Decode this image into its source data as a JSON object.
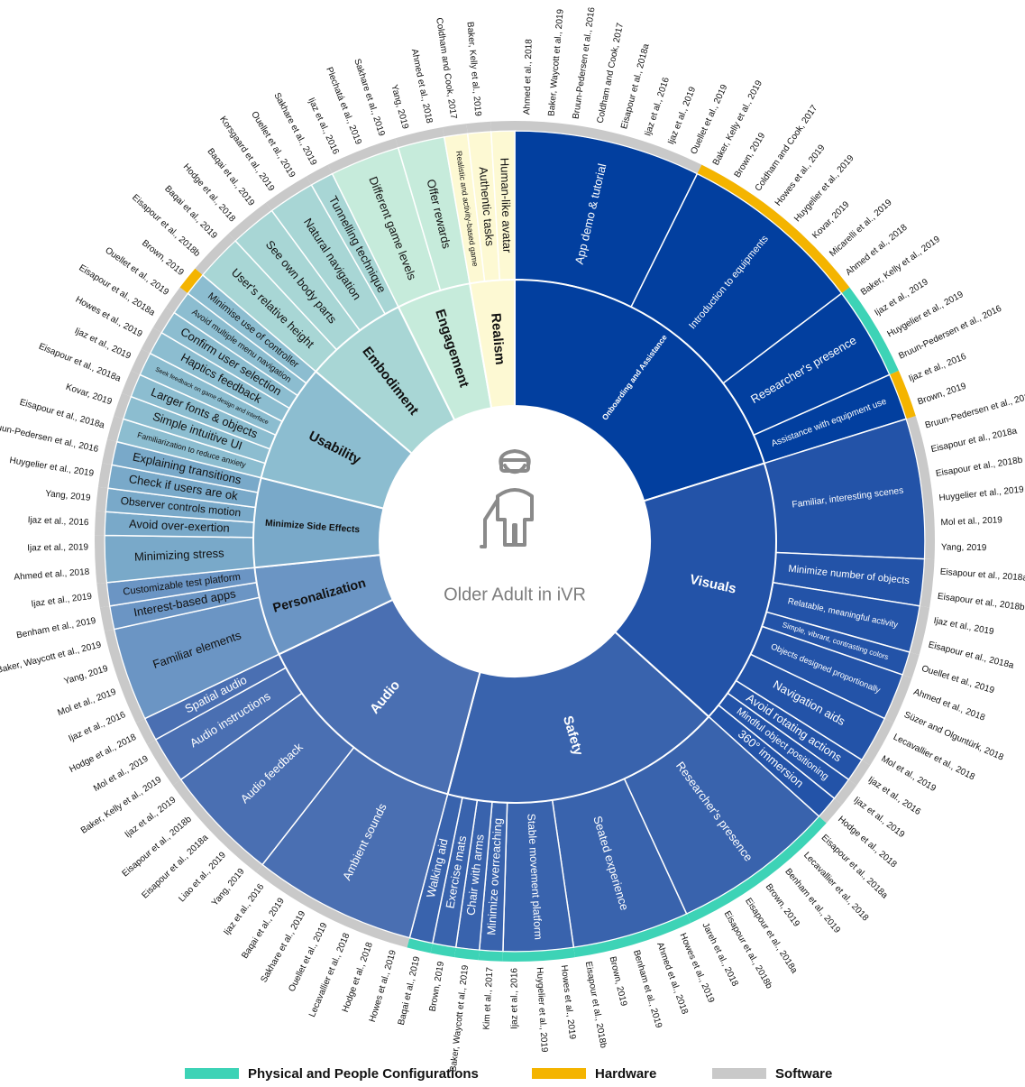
{
  "center": "Older Adult in iVR",
  "legend": [
    {
      "key": "physical",
      "label": "Physical and People Configurations",
      "color": "#3dd3b6"
    },
    {
      "key": "hardware",
      "label": "Hardware",
      "color": "#f4b400"
    },
    {
      "key": "software",
      "label": "Software",
      "color": "#c9c9c9"
    }
  ],
  "categories": [
    {
      "name": "Onboarding and Assistance",
      "color": "#023f9f",
      "subcategories": [
        {
          "name": "App demo & tutorial",
          "type": "software",
          "citations": [
            "Ahmed et al., 2018",
            "Baker, Waycott et al., 2019",
            "Bruun-Pedersen et al., 2016",
            "Coldham and Cook, 2017",
            "Eisapour et al., 2018a",
            "Ijaz et al., 2016",
            "Ijaz et al., 2019",
            "Ouellet et al., 2019"
          ]
        },
        {
          "name": "Introduction to equipments",
          "type": "hardware",
          "citations": [
            "Baker, Kelly et al., 2019",
            "Brown, 2019",
            "Coldham and Cook, 2017",
            "Howes et al., 2019",
            "Huygelier et al., 2019",
            "Kovar, 2019",
            "Micarelli et al., 2019",
            "Ahmed et al., 2018"
          ]
        },
        {
          "name": "Researcher's presence",
          "type": "physical",
          "citations": [
            "Baker, Kelly et al., 2019",
            "Ijaz et al., 2019",
            "Huygelier et al., 2019",
            "Bruun-Pedersen et al., 2016"
          ]
        },
        {
          "name": "Assistance with equipment use",
          "type": "hardware",
          "citations": [
            "Ijaz et al., 2016",
            "Brown, 2019"
          ]
        }
      ]
    },
    {
      "name": "Visuals",
      "color": "#2353a8",
      "subcategories": [
        {
          "name": "Familiar, interesting scenes",
          "type": "software",
          "citations": [
            "Bruun-Pedersen et al., 2016",
            "Eisapour et al., 2018a",
            "Eisapour et al., 2018b",
            "Huygelier et al., 2019",
            "Mol et al., 2019",
            "Yang, 2019"
          ]
        },
        {
          "name": "Minimize number of objects",
          "type": "software",
          "citations": [
            "Eisapour et al., 2018a",
            "Eisapour et al., 2018b"
          ]
        },
        {
          "name": "Relatable, meaningful activity",
          "type": "software",
          "citations": [
            "Ijaz et al., 2019",
            "Eisapour et al., 2018a"
          ]
        },
        {
          "name": "Simple, vibrant, contrasting colors",
          "type": "software",
          "citations": [
            "Ouellet et al., 2019"
          ]
        },
        {
          "name": "Objects designed proportionally",
          "type": "software",
          "citations": [
            "Ahmed et al., 2018",
            "Süzer and Olguntürk, 2018"
          ]
        },
        {
          "name": "Navigation aids",
          "type": "software",
          "citations": [
            "Lecavallier et al., 2018",
            "Mol et al., 2019"
          ]
        },
        {
          "name": "Avoid rotating actions",
          "type": "software",
          "citations": [
            "Ijaz et al., 2016"
          ]
        },
        {
          "name": "Mindful object positioning",
          "type": "software",
          "citations": [
            "Ijaz et al., 2019"
          ]
        },
        {
          "name": "360° immersion",
          "type": "software",
          "citations": [
            "Hodge et al., 2018"
          ]
        }
      ]
    },
    {
      "name": "Safety",
      "color": "#3963ad",
      "subcategories": [
        {
          "name": "Researcher's presence",
          "type": "physical",
          "citations": [
            "Eisapour et al., 2018a",
            "Lecavallier et al., 2018",
            "Benham et al., 2019",
            "Brown, 2019",
            "Eisapour et al., 2018a",
            "Eisapour et al., 2018b",
            "Jareh et al., 2018"
          ]
        },
        {
          "name": "Seated experience",
          "type": "physical",
          "citations": [
            "Howes et al., 2019",
            "Ahmed et al., 2018",
            "Benham et al., 2019",
            "Brown, 2019",
            "Eisapour et al., 2018b"
          ]
        },
        {
          "name": "Stable movement platform",
          "type": "physical",
          "citations": [
            "Howes et al., 2019",
            "Huygelier et al., 2019",
            "Ijaz et al., 2016"
          ]
        },
        {
          "name": "Minimize overreaching",
          "type": "physical",
          "citations": [
            "Kim et al., 2017"
          ]
        },
        {
          "name": "Chair with arms",
          "type": "physical",
          "citations": [
            "Baker, Waycott et al., 2019"
          ]
        },
        {
          "name": "Exercise mats",
          "type": "physical",
          "citations": [
            "Brown, 2019"
          ]
        },
        {
          "name": "Walking aid",
          "type": "physical",
          "citations": [
            "Baqai et al., 2019"
          ]
        }
      ]
    },
    {
      "name": "Audio",
      "color": "#4a6fb2",
      "subcategories": [
        {
          "name": "Ambient sounds",
          "type": "software",
          "citations": [
            "Howes et al., 2019",
            "Hodge et al., 2018",
            "Lecavallier et al., 2018",
            "Ouellet et al., 2019",
            "Sakhare et al., 2019",
            "Baqai et al., 2019",
            "Ijaz et al., 2016"
          ]
        },
        {
          "name": "Audio feedback",
          "type": "software",
          "citations": [
            "Yang, 2019",
            "Liao et al., 2019",
            "Eisapour et al., 2018a",
            "Eisapour et al., 2018b",
            "Ijaz et al., 2019"
          ]
        },
        {
          "name": "Audio instructions",
          "type": "software",
          "citations": [
            "Baker, Kelly et al., 2019",
            "Mol et al., 2019"
          ]
        },
        {
          "name": "Spatial audio",
          "type": "software",
          "citations": [
            "Hodge et al., 2018"
          ]
        }
      ]
    },
    {
      "name": "Personalization",
      "color": "#6b95c4",
      "subcategories": [
        {
          "name": "Familiar elements",
          "type": "software",
          "citations": [
            "Ijaz et al., 2016",
            "Mol et al., 2019",
            "Yang, 2019",
            "Baker, Waycott et al., 2019"
          ]
        },
        {
          "name": "Interest-based apps",
          "type": "software",
          "citations": [
            "Benham et al., 2019"
          ]
        },
        {
          "name": "Customizable test platform",
          "type": "software",
          "citations": [
            "Ijaz et al., 2019"
          ]
        }
      ]
    },
    {
      "name": "Minimize Side Effects",
      "color": "#79a9c9",
      "subcategories": [
        {
          "name": "Minimizing stress",
          "type": "software",
          "citations": [
            "Ahmed et al., 2018",
            "Ijaz et al., 2019"
          ]
        },
        {
          "name": "Avoid over-exertion",
          "type": "software",
          "citations": [
            "Ijaz et al., 2016"
          ]
        },
        {
          "name": "Observer controls motion",
          "type": "software",
          "citations": [
            "Yang, 2019"
          ]
        },
        {
          "name": "Check if users are ok",
          "type": "software",
          "citations": [
            "Huygelier et al., 2019"
          ]
        },
        {
          "name": "Explaining transitions",
          "type": "software",
          "citations": [
            "Bruun-Pedersen et al., 2016"
          ]
        }
      ]
    },
    {
      "name": "Usability",
      "color": "#8cbdd0",
      "subcategories": [
        {
          "name": "Familiarization to reduce anxiety",
          "type": "software",
          "citations": [
            "Eisapour et al., 2018a"
          ]
        },
        {
          "name": "Simple intuitive UI",
          "type": "software",
          "citations": [
            "Kovar, 2019"
          ]
        },
        {
          "name": "Larger fonts & objects",
          "type": "software",
          "citations": [
            "Eisapour et al., 2018a"
          ]
        },
        {
          "name": "Seek feedback on game design and interface",
          "type": "software",
          "citations": [
            "Ijaz et al., 2019"
          ]
        },
        {
          "name": "Haptics feedback",
          "type": "software",
          "citations": [
            "Howes et al., 2019"
          ]
        },
        {
          "name": "Confirm user selection",
          "type": "software",
          "citations": [
            "Eisapour et al., 2018a"
          ]
        },
        {
          "name": "Avoid multiple menu navigation",
          "type": "software",
          "citations": [
            "Ouellet et al., 2019"
          ]
        },
        {
          "name": "Minimise use of controller",
          "type": "hardware",
          "citations": [
            "Brown, 2019"
          ]
        }
      ]
    },
    {
      "name": "Embodiment",
      "color": "#a8d6d5",
      "subcategories": [
        {
          "name": "User's relative height",
          "type": "software",
          "citations": [
            "Eisapour et al., 2018b",
            "Baqai et al., 2019"
          ]
        },
        {
          "name": "See own body parts",
          "type": "software",
          "citations": [
            "Hodge et al., 2018",
            "Baqai et al., 2019"
          ]
        },
        {
          "name": "Natural navigation",
          "type": "software",
          "citations": [
            "Korsgaard et al., 2019",
            "Ouellet et al., 2019"
          ]
        },
        {
          "name": "Tunnelling technique",
          "type": "software",
          "citations": [
            "Sakhare et al., 2019"
          ]
        }
      ]
    },
    {
      "name": "Engagement",
      "color": "#c6ebdb",
      "subcategories": [
        {
          "name": "Different game levels",
          "type": "software",
          "citations": [
            "Ijaz et al., 2016",
            "Plechatá et al., 2019",
            "Sakhare et al., 2019"
          ]
        },
        {
          "name": "Offer rewards",
          "type": "software",
          "citations": [
            "Yang, 2019",
            "Ahmed et al., 2018"
          ]
        }
      ]
    },
    {
      "name": "Realism",
      "color": "#fdf9d3",
      "subcategories": [
        {
          "name": "Realistic and activity-based game",
          "type": "software",
          "citations": [
            "Coldham and Cook, 2017"
          ]
        },
        {
          "name": "Authentic tasks",
          "type": "software",
          "citations": [
            "Baker, Kelly et al., 2019"
          ]
        },
        {
          "name": "Human-like avatar",
          "type": "software",
          "citations": []
        }
      ]
    }
  ]
}
